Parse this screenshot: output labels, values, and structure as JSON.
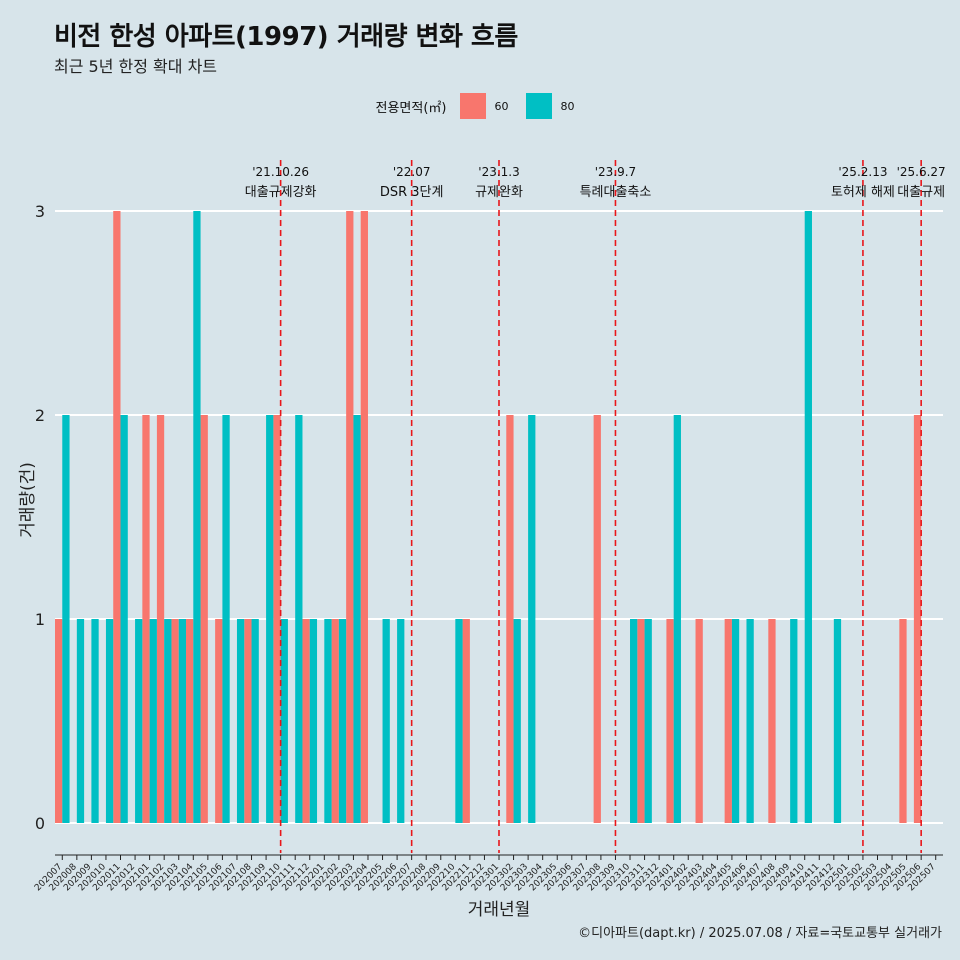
{
  "title": "비전 한성 아파트(1997) 거래량 변화 흐름",
  "subtitle": "최근 5년 한정 확대 차트",
  "legend": {
    "title": "전용면적(㎡)",
    "items": [
      {
        "label": "60",
        "color": "#f8766d"
      },
      {
        "label": "80",
        "color": "#00bfc4"
      }
    ]
  },
  "caption": "©디아파트(dapt.kr) / 2025.07.08 / 자료=국토교통부 실거래가",
  "chart_data": {
    "type": "bar",
    "xlabel": "거래년월",
    "ylabel": "거래량(건)",
    "ylim": [
      0,
      3
    ],
    "yticks": [
      0,
      1,
      2,
      3
    ],
    "categories": [
      "202007",
      "202008",
      "202009",
      "202010",
      "202011",
      "202012",
      "202101",
      "202102",
      "202103",
      "202104",
      "202105",
      "202106",
      "202107",
      "202108",
      "202109",
      "202110",
      "202111",
      "202112",
      "202201",
      "202202",
      "202203",
      "202204",
      "202205",
      "202206",
      "202207",
      "202208",
      "202209",
      "202210",
      "202211",
      "202212",
      "202301",
      "202302",
      "202303",
      "202304",
      "202305",
      "202306",
      "202307",
      "202308",
      "202309",
      "202310",
      "202311",
      "202312",
      "202401",
      "202402",
      "202403",
      "202404",
      "202405",
      "202406",
      "202407",
      "202408",
      "202409",
      "202410",
      "202411",
      "202412",
      "202501",
      "202502",
      "202503",
      "202504",
      "202505",
      "202506",
      "202507"
    ],
    "series": [
      {
        "name": "60",
        "color": "#f8766d",
        "values": [
          1,
          0,
          0,
          0,
          3,
          0,
          2,
          2,
          1,
          1,
          2,
          1,
          0,
          1,
          0,
          2,
          0,
          1,
          0,
          1,
          3,
          3,
          0,
          0,
          0,
          0,
          0,
          0,
          1,
          0,
          0,
          2,
          0,
          0,
          0,
          0,
          0,
          2,
          0,
          0,
          1,
          0,
          1,
          0,
          1,
          0,
          1,
          0,
          0,
          1,
          0,
          0,
          0,
          0,
          0,
          0,
          0,
          0,
          1,
          2,
          0
        ]
      },
      {
        "name": "80",
        "color": "#00bfc4",
        "values": [
          2,
          1,
          1,
          1,
          2,
          1,
          1,
          1,
          1,
          3,
          0,
          2,
          1,
          1,
          2,
          1,
          2,
          1,
          1,
          1,
          2,
          0,
          1,
          1,
          0,
          0,
          0,
          1,
          0,
          0,
          0,
          1,
          2,
          0,
          0,
          0,
          0,
          0,
          0,
          1,
          1,
          0,
          2,
          0,
          0,
          0,
          1,
          1,
          0,
          0,
          1,
          3,
          0,
          1,
          0,
          0,
          0,
          0,
          0,
          0,
          0
        ]
      }
    ],
    "events": [
      {
        "month": "202110",
        "date": "'21.10.26",
        "label": "대출규제강화"
      },
      {
        "month": "202207",
        "date": "'22.07",
        "label": "DSR 3단계"
      },
      {
        "month": "202301",
        "date": "'23.1.3",
        "label": "규제완화"
      },
      {
        "month": "202309",
        "date": "'23.9.7",
        "label": "특례대출축소"
      },
      {
        "month": "202502",
        "date": "'25.2.13",
        "label": "토허제 해제"
      },
      {
        "month": "202506",
        "date": "'25.6.27",
        "label": "대출규제"
      }
    ]
  }
}
